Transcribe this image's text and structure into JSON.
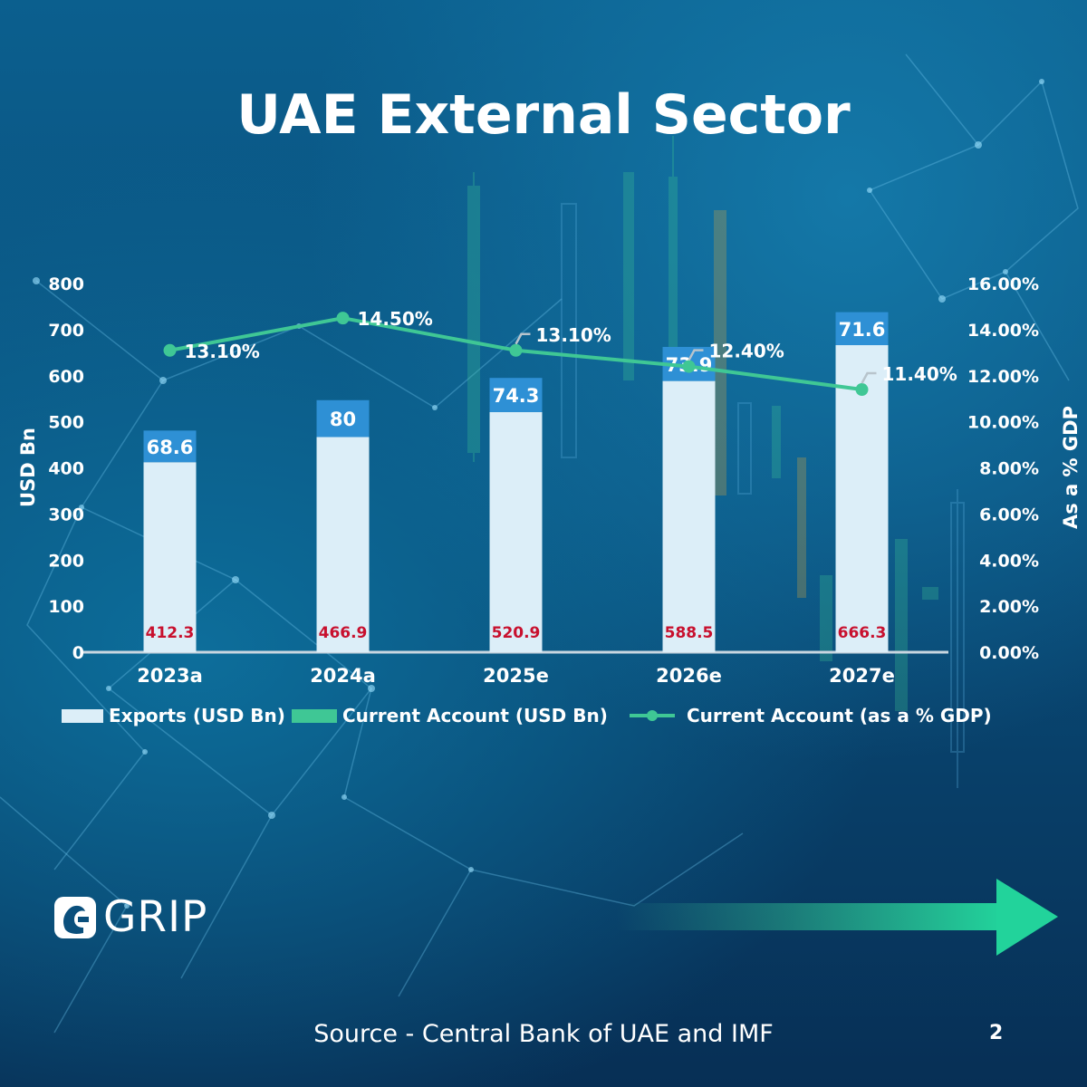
{
  "title": "UAE External Sector",
  "source": "Source - Central Bank of UAE and IMF",
  "page_number": "2",
  "logo_text": "GRIP",
  "colors": {
    "exports": "#dceef8",
    "current_account": "#2e90d5",
    "line": "#3fc795",
    "export_label": "#c8102e"
  },
  "chart_data": {
    "type": "bar",
    "categories": [
      "2023a",
      "2024a",
      "2025e",
      "2026e",
      "2027e"
    ],
    "series": [
      {
        "name": "Exports (USD Bn)",
        "values": [
          412.3,
          466.9,
          520.9,
          588.5,
          666.3
        ],
        "labels": [
          "412.3",
          "466.9",
          "520.9",
          "588.5",
          "666.3"
        ]
      },
      {
        "name": "Current Account (USD Bn)",
        "values": [
          68.6,
          80,
          74.3,
          73.9,
          71.6
        ],
        "labels": [
          "68.6",
          "80",
          "74.3",
          "73.9",
          "71.6"
        ]
      },
      {
        "name": "Current Account (as a % GDP)",
        "type": "line",
        "axis": "right",
        "values": [
          13.1,
          14.5,
          13.1,
          12.4,
          11.4
        ],
        "labels": [
          "13.10%",
          "14.50%",
          "13.10%",
          "12.40%",
          "11.40%"
        ]
      }
    ],
    "ylabel": "USD Bn",
    "ylabel_right": "As a % GDP",
    "ylim": [
      0,
      800
    ],
    "ylim_right": [
      0,
      16
    ],
    "yticks": [
      "0",
      "100",
      "200",
      "300",
      "400",
      "500",
      "600",
      "700",
      "800"
    ],
    "yticks_right": [
      "0.00%",
      "2.00%",
      "4.00%",
      "6.00%",
      "8.00%",
      "10.00%",
      "12.00%",
      "14.00%",
      "16.00%"
    ],
    "stacked": true,
    "legend_position": "bottom"
  }
}
